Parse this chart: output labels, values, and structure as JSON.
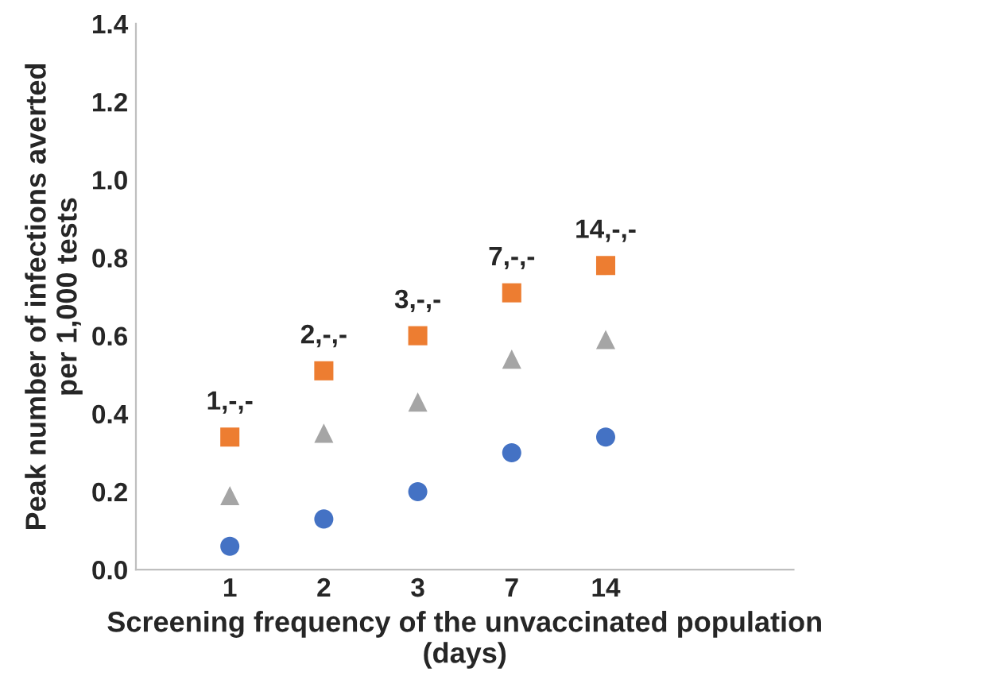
{
  "chart_data": {
    "type": "scatter",
    "xlabel": "Screening frequency of the unvaccinated population\n(days)",
    "ylabel": "Peak number of infections averted\nper 1,000 tests",
    "categories": [
      "1",
      "2",
      "3",
      "7",
      "14"
    ],
    "series": [
      {
        "color": "#ed7d31",
        "marker": "square",
        "values": [
          0.34,
          0.51,
          0.6,
          0.71,
          0.78
        ]
      },
      {
        "color": "#a5a5a5",
        "marker": "triangle",
        "values": [
          0.19,
          0.35,
          0.43,
          0.54,
          0.59
        ]
      },
      {
        "color": "#4472c4",
        "marker": "circle",
        "values": [
          0.06,
          0.13,
          0.2,
          0.3,
          0.34
        ]
      }
    ],
    "annotations": [
      {
        "text": "1,-,-",
        "x": "1",
        "y": 0.34
      },
      {
        "text": "2,-,-",
        "x": "2",
        "y": 0.51
      },
      {
        "text": "3,-,-",
        "x": "3",
        "y": 0.6
      },
      {
        "text": "7,-,-",
        "x": "7",
        "y": 0.71
      },
      {
        "text": "14,-,-",
        "x": "14",
        "y": 0.78
      }
    ],
    "ylim": [
      0,
      1.4
    ],
    "yticks": [
      {
        "value": 0,
        "label": "0.0"
      },
      {
        "value": 0.2,
        "label": "0.2"
      },
      {
        "value": 0.4,
        "label": "0.4"
      },
      {
        "value": 0.6,
        "label": "0.6"
      },
      {
        "value": 0.8,
        "label": "0.8"
      },
      {
        "value": 1.0,
        "label": "1.0"
      },
      {
        "value": 1.2,
        "label": "1.2"
      },
      {
        "value": 1.4,
        "label": "1.4"
      }
    ],
    "grid": false,
    "legend": false
  }
}
